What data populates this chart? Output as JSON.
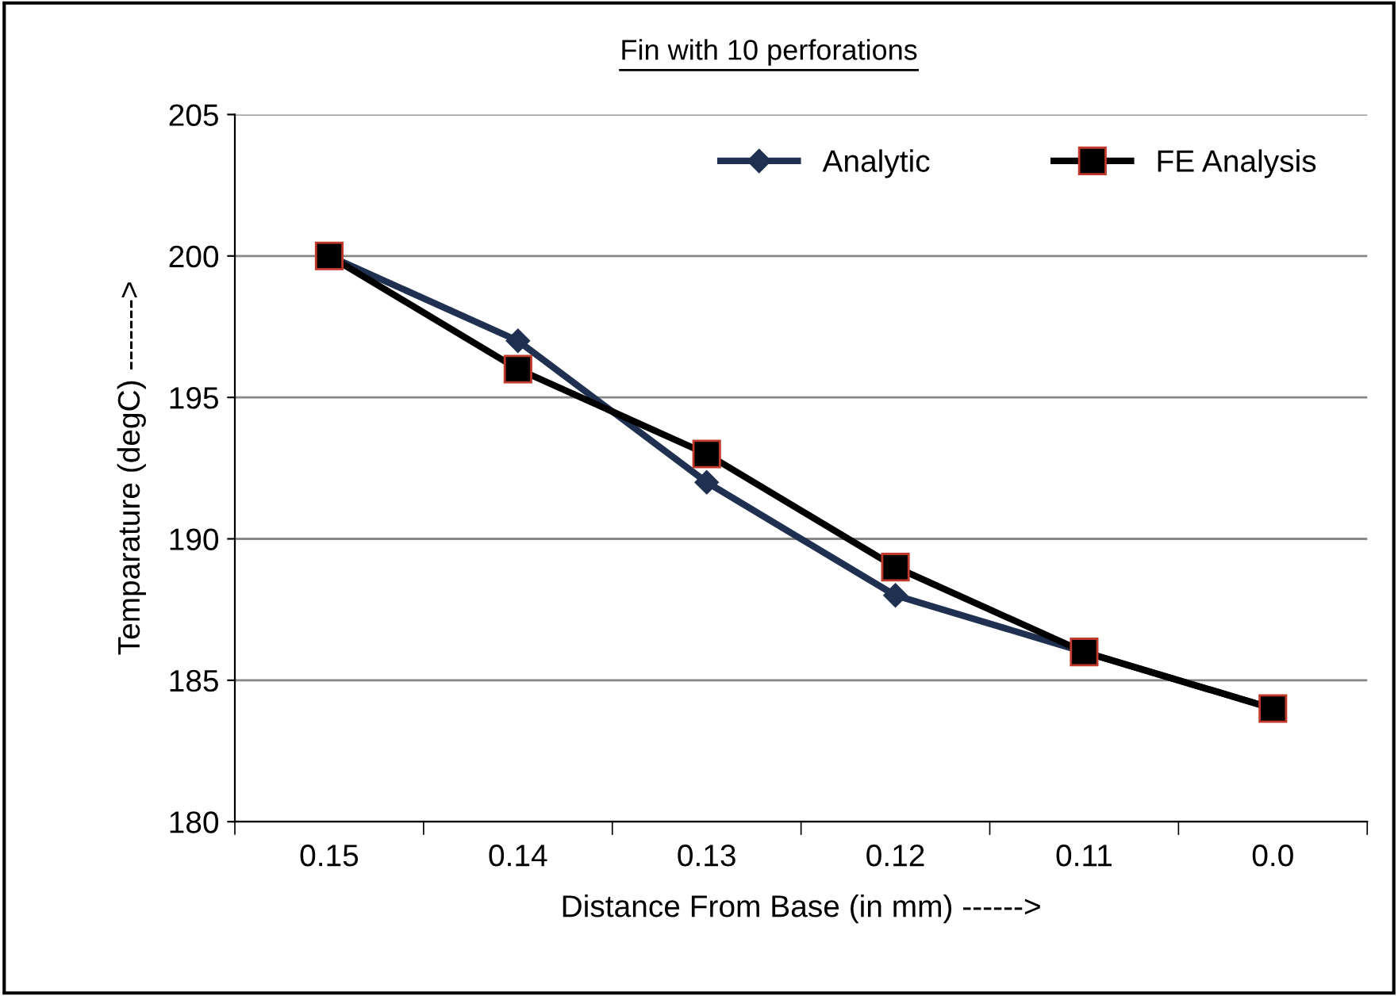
{
  "chart_data": {
    "type": "line",
    "title": "Fin with 10 perforations",
    "xlabel": "Distance From Base (in mm) ------>",
    "ylabel": "Temparature (degC) ------->",
    "categories": [
      "0.15",
      "0.14",
      "0.13",
      "0.12",
      "0.11",
      "0.0"
    ],
    "series": [
      {
        "name": "Analytic",
        "color": "#1f3050",
        "marker": "diamond",
        "values": [
          200,
          197,
          192,
          188,
          186,
          184
        ]
      },
      {
        "name": "FE Analysis",
        "color": "#000000",
        "marker": "square",
        "values": [
          200,
          196,
          193,
          189,
          186,
          184
        ]
      }
    ],
    "ylim": [
      180,
      205
    ],
    "yticks": [
      180,
      185,
      190,
      195,
      200,
      205
    ],
    "grid": "y",
    "legend": "top right",
    "line_style": "solid"
  }
}
